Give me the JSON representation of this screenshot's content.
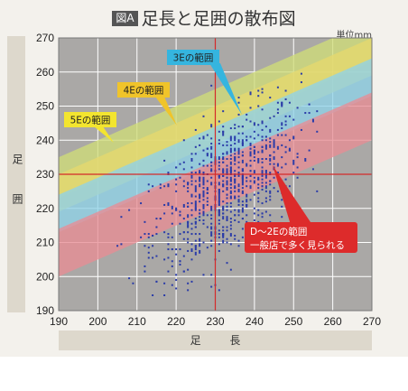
{
  "header": {
    "badge": "図A",
    "title": "足長と足囲の散布図",
    "unit": "単位mm"
  },
  "chart_data": {
    "type": "scatter",
    "title": "足長と足囲の散布図",
    "xlabel": "足 長",
    "ylabel": "足 囲",
    "unit": "mm",
    "xlim": [
      190,
      270
    ],
    "ylim": [
      190,
      270
    ],
    "x_ticks": [
      190,
      200,
      210,
      220,
      230,
      240,
      250,
      260,
      270
    ],
    "y_ticks": [
      190,
      200,
      210,
      220,
      230,
      240,
      250,
      260,
      270
    ],
    "grid": true,
    "reference_lines": {
      "x": 230,
      "y": 230
    },
    "bands": [
      {
        "name": "5E",
        "color": "#cfdc79",
        "x": [
          190,
          270
        ],
        "lower": [
          223,
          263
        ],
        "upper": [
          235,
          275
        ]
      },
      {
        "name": "4E",
        "color": "#e6d86e",
        "x": [
          190,
          270
        ],
        "lower": [
          219,
          259
        ],
        "upper": [
          230,
          270
        ]
      },
      {
        "name": "3E",
        "color": "#8fd2e8",
        "x": [
          190,
          270
        ],
        "lower": [
          213,
          253
        ],
        "upper": [
          224,
          264
        ]
      },
      {
        "name": "D〜2E",
        "color": "#e88d95",
        "x": [
          190,
          270
        ],
        "lower": [
          200,
          240
        ],
        "upper": [
          214,
          254
        ]
      }
    ],
    "labels": {
      "band_5e": "5Eの範囲",
      "band_4e": "4Eの範囲",
      "band_3e": "3Eの範囲",
      "band_d2e_line1": "D〜2Eの範囲",
      "band_d2e_line2": "一般店で多く見られる"
    },
    "scatter": {
      "description_count": 900,
      "x_center": 233,
      "x_sd": 9.5,
      "y_center": 226,
      "y_sd": 12,
      "correlation": 0.55,
      "x_range": [
        201,
        257
      ],
      "y_range": [
        193,
        262
      ]
    },
    "colors": {
      "points": "#2a3ba8",
      "reference_line": "#d42a2a",
      "plot_background": "#aaa8a6",
      "grid": "#ffffff",
      "callout_d2e": "#dd2b2b",
      "callout_3e": "#35b5df"
    }
  }
}
